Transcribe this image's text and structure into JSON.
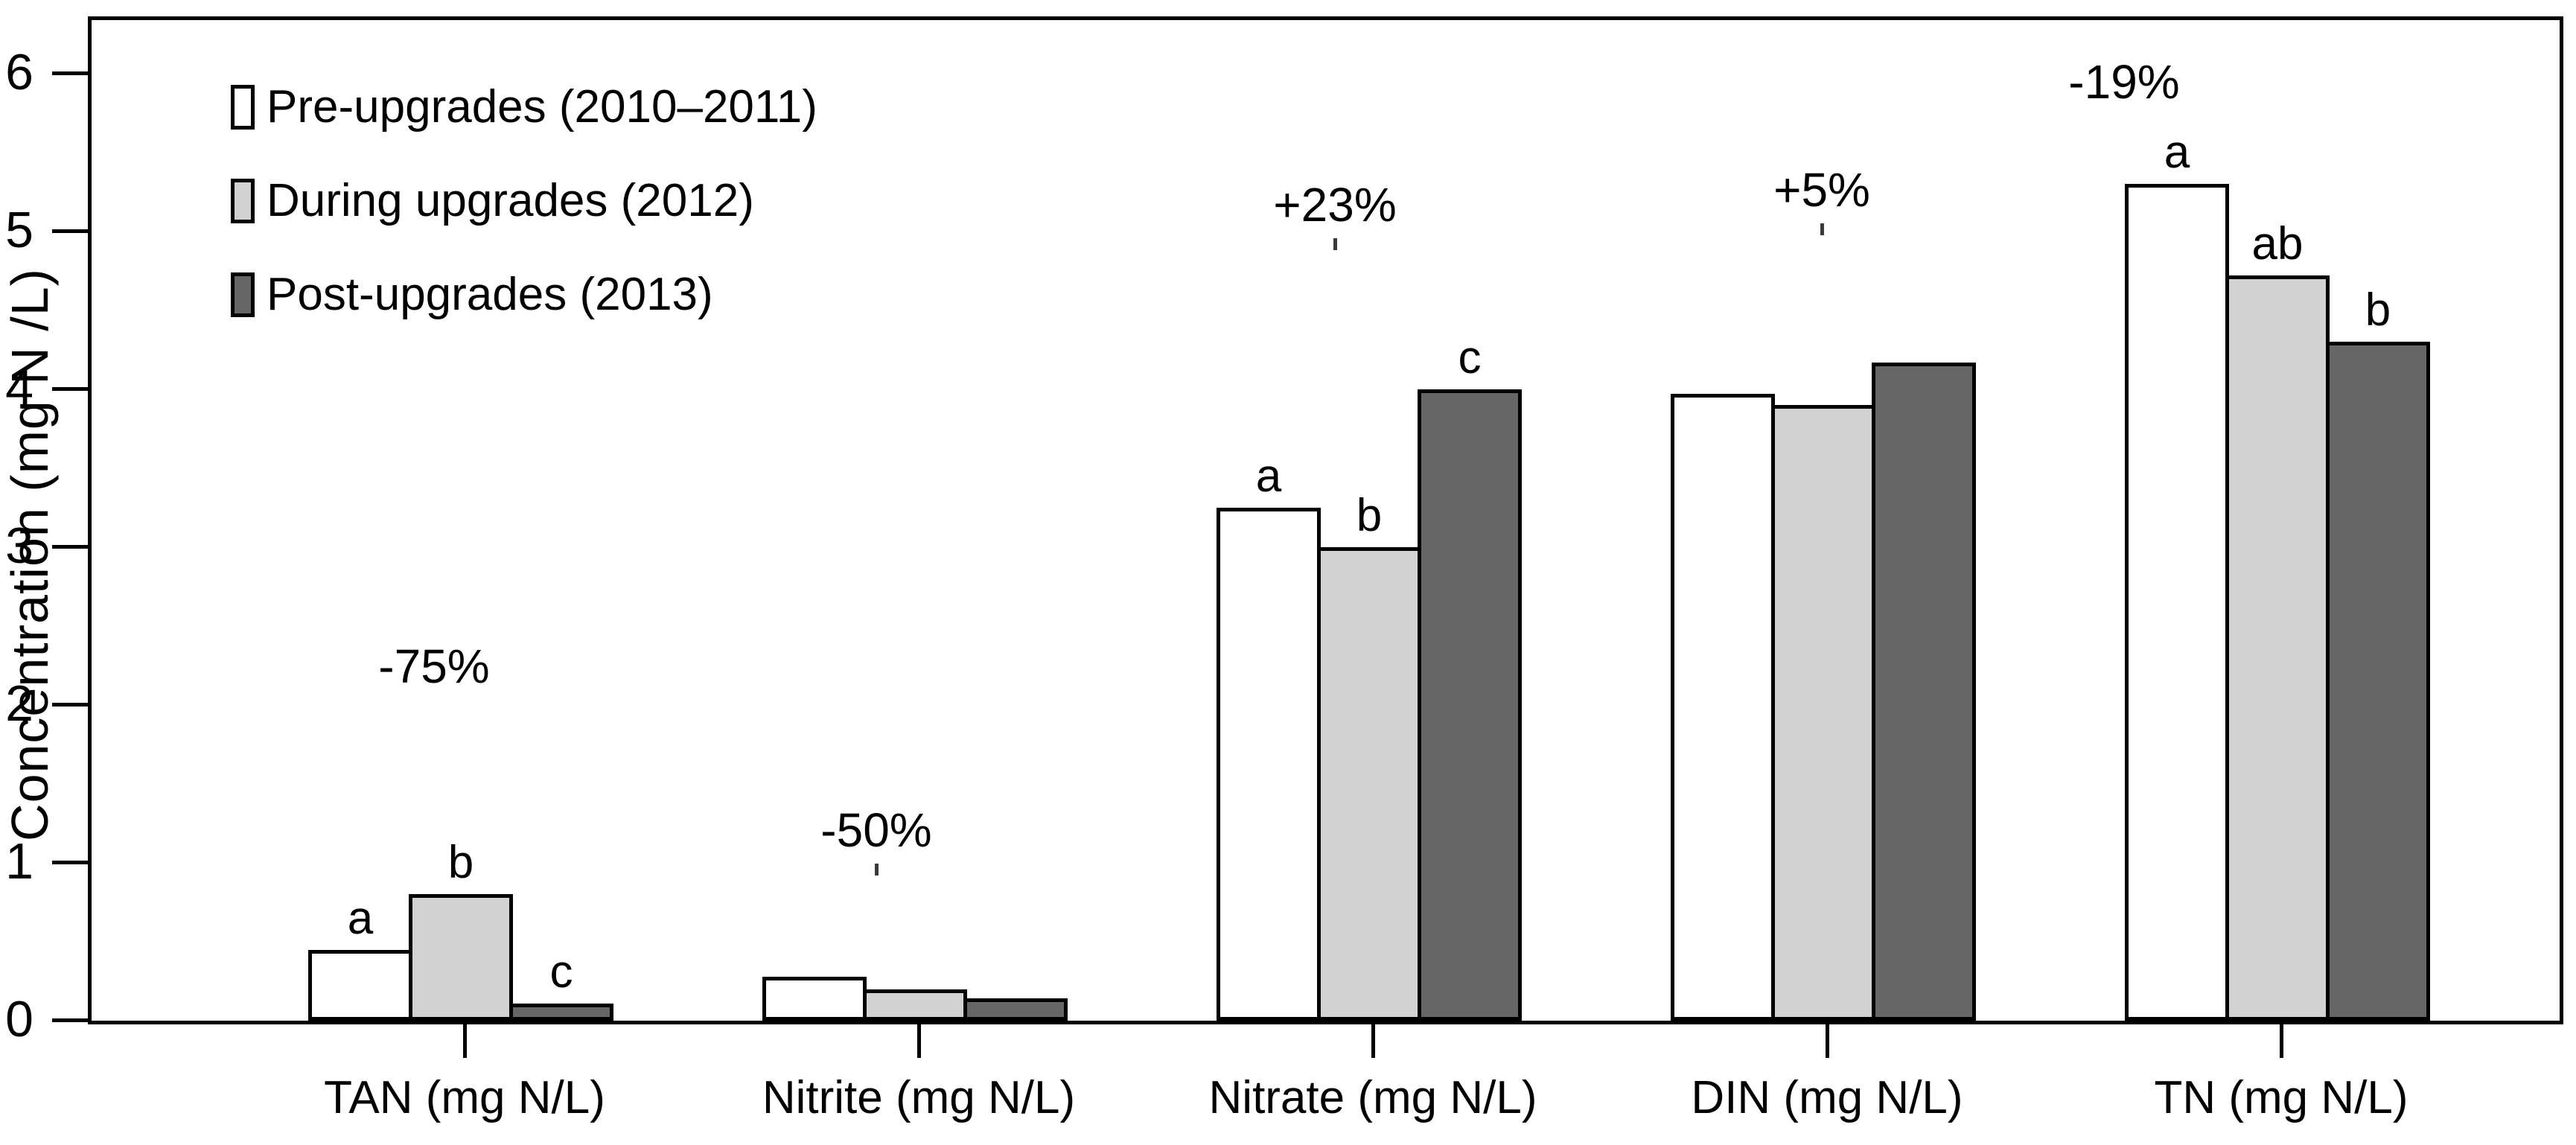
{
  "figure": {
    "background": "#ffffff",
    "border_color": "#000000"
  },
  "legend": {
    "items": [
      {
        "label": "Pre-upgrades (2010–2011)",
        "color": "#ffffff"
      },
      {
        "label": "During upgrades (2012)",
        "color": "#d2d2d2"
      },
      {
        "label": "Post-upgrades (2013)",
        "color": "#666666"
      }
    ]
  },
  "chart_data": {
    "type": "bar",
    "title": "",
    "xlabel": "",
    "ylabel": "Concentration (mg N /L)",
    "ylim": [
      0,
      6
    ],
    "yticks": [
      0,
      1,
      2,
      3,
      4,
      5,
      6
    ],
    "grid": false,
    "legend_position": "upper-left-inside",
    "bar_edge_color": "#000000",
    "categories": [
      "TAN (mg N/L)",
      "Nitrite (mg N/L)",
      "Nitrate (mg N/L)",
      "DIN (mg N/L)",
      "TN (mg N/L)"
    ],
    "series": [
      {
        "name": "Pre-upgrades (2010–2011)",
        "color": "#ffffff",
        "values": [
          0.45,
          0.28,
          3.25,
          3.97,
          5.3
        ]
      },
      {
        "name": "During upgrades (2012)",
        "color": "#d2d2d2",
        "values": [
          0.8,
          0.2,
          3.0,
          3.9,
          4.72
        ]
      },
      {
        "name": "Post-upgrades (2013)",
        "color": "#666666",
        "values": [
          0.11,
          0.14,
          4.0,
          4.17,
          4.3
        ]
      }
    ],
    "significance_letters": [
      [
        "a",
        "b",
        "c"
      ],
      [
        "",
        "",
        ""
      ],
      [
        "a",
        "b",
        "c"
      ],
      [
        "",
        "",
        ""
      ],
      [
        "a",
        "ab",
        "b"
      ]
    ],
    "group_annotations": [
      "-75%",
      "-50%",
      "+23%",
      "+5%",
      "-19%"
    ]
  }
}
